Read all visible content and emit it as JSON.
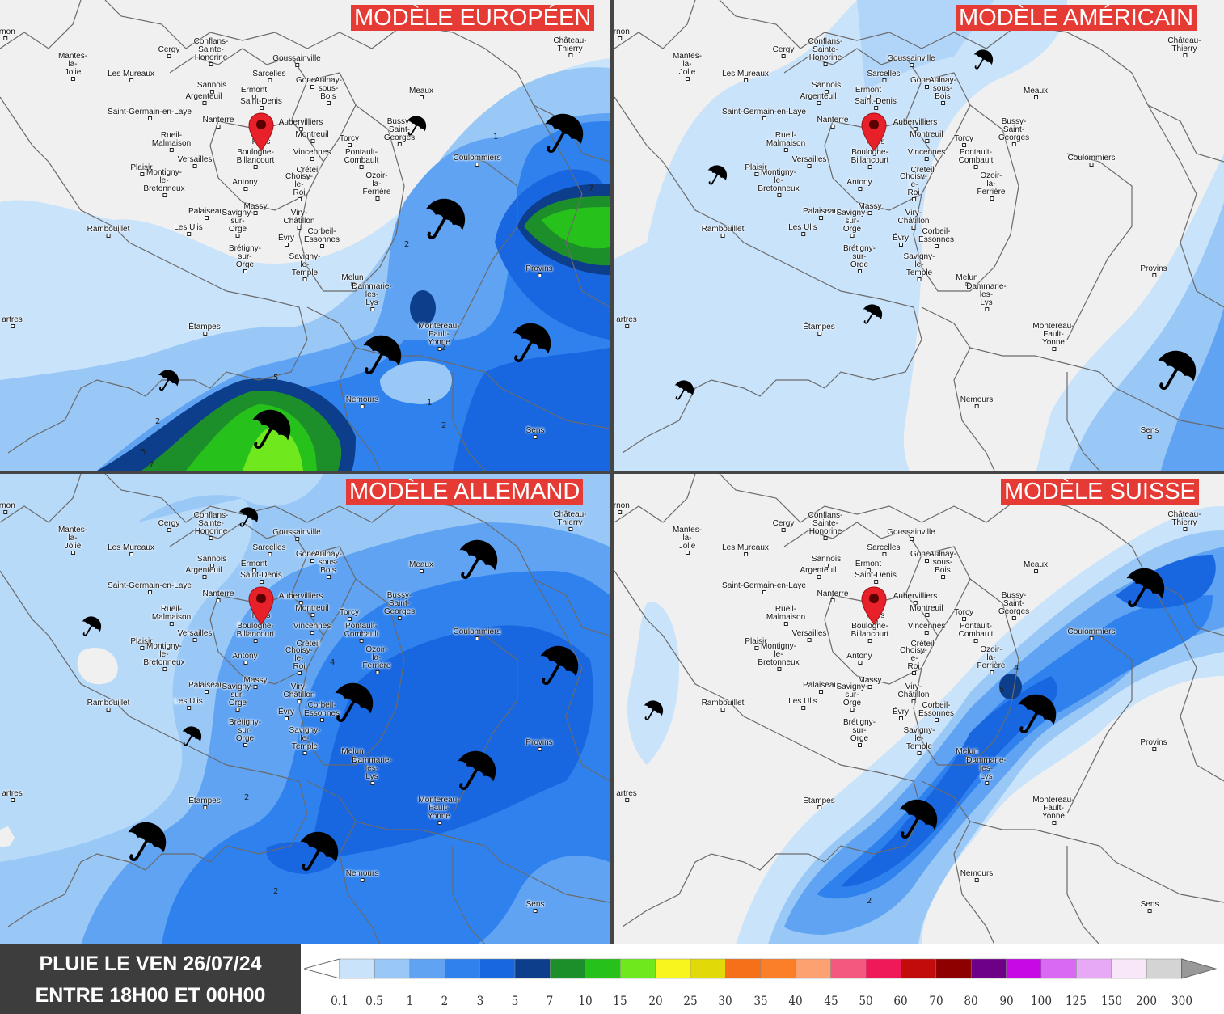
{
  "panels": [
    {
      "id": "european",
      "title": "MODÈLE EUROPÉEN"
    },
    {
      "id": "american",
      "title": "MODÈLE AMÉRICAIN"
    },
    {
      "id": "german",
      "title": "MODÈLE ALLEMAND"
    },
    {
      "id": "swiss",
      "title": "MODÈLE SUISSE"
    }
  ],
  "cities": [
    "Cergy",
    "Conflans-Sainte-Honorine",
    "Goussainville",
    "Mantes-la-Jolie",
    "Les Mureaux",
    "Sarcelles",
    "Gonesse",
    "Sannois",
    "Ermont",
    "Argenteuil",
    "Saint-Denis",
    "Aulnay-sous-Bois",
    "Saint-Germain-en-Laye",
    "Nanterre",
    "Aubervilliers",
    "Paris",
    "Rueil-Malmaison",
    "Montreuil",
    "Torcy",
    "Bussy-Saint-Georges",
    "Vincennes",
    "Versailles",
    "Boulogne-Billancourt",
    "Pontault-Combault",
    "Plaisir",
    "Créteil",
    "Antony",
    "Montigny-le-Bretonneux",
    "Choisy-le-Roi",
    "Ozoir-la-Ferrière",
    "Massy",
    "Palaiseau",
    "Viry-Châtillon",
    "Rambouillet",
    "Les Ulis",
    "Savigny-sur-Orge",
    "Évry",
    "Corbeil-Essonnes",
    "Brétigny-sur-Orge",
    "Savigny-le-Temple",
    "Melun",
    "Dammarie-les-Lys",
    "Étampes",
    "Meaux",
    "Château-Thierry",
    "Coulommiers",
    "Provins",
    "Montereau-Fault-Yonne",
    "Nemours",
    "Sens",
    "ernon",
    "artres"
  ],
  "footer": {
    "line1": "PLUIE LE VEN 26/07/24",
    "line2": "ENTRE 18H00 ET 00H00"
  },
  "legend": {
    "ticks": [
      "0.1",
      "0.5",
      "1",
      "2",
      "3",
      "5",
      "7",
      "10",
      "15",
      "20",
      "25",
      "30",
      "35",
      "40",
      "45",
      "50",
      "60",
      "70",
      "80",
      "90",
      "100",
      "125",
      "150",
      "200",
      "300"
    ],
    "colors": [
      "#c9e3fb",
      "#99c8f7",
      "#5fa3f2",
      "#2f82ee",
      "#1967e0",
      "#0c3e8c",
      "#1d8f2a",
      "#26c11b",
      "#70e81e",
      "#f8f51e",
      "#e1d908",
      "#f57018",
      "#fb7e29",
      "#fca270",
      "#f5587f",
      "#f01958",
      "#c20b0b",
      "#8e0000",
      "#6d0087",
      "#c609e5",
      "#d968f2",
      "#e7a9f5",
      "#f7e7f9",
      "#d4d4d4"
    ]
  },
  "contour_labels": {
    "european": [
      "1",
      "2",
      "2",
      "1",
      "2",
      "5",
      "2",
      "5",
      "7",
      "7"
    ],
    "german": [
      "2",
      "4",
      "2"
    ],
    "swiss": [
      "4",
      "5",
      "2"
    ]
  }
}
